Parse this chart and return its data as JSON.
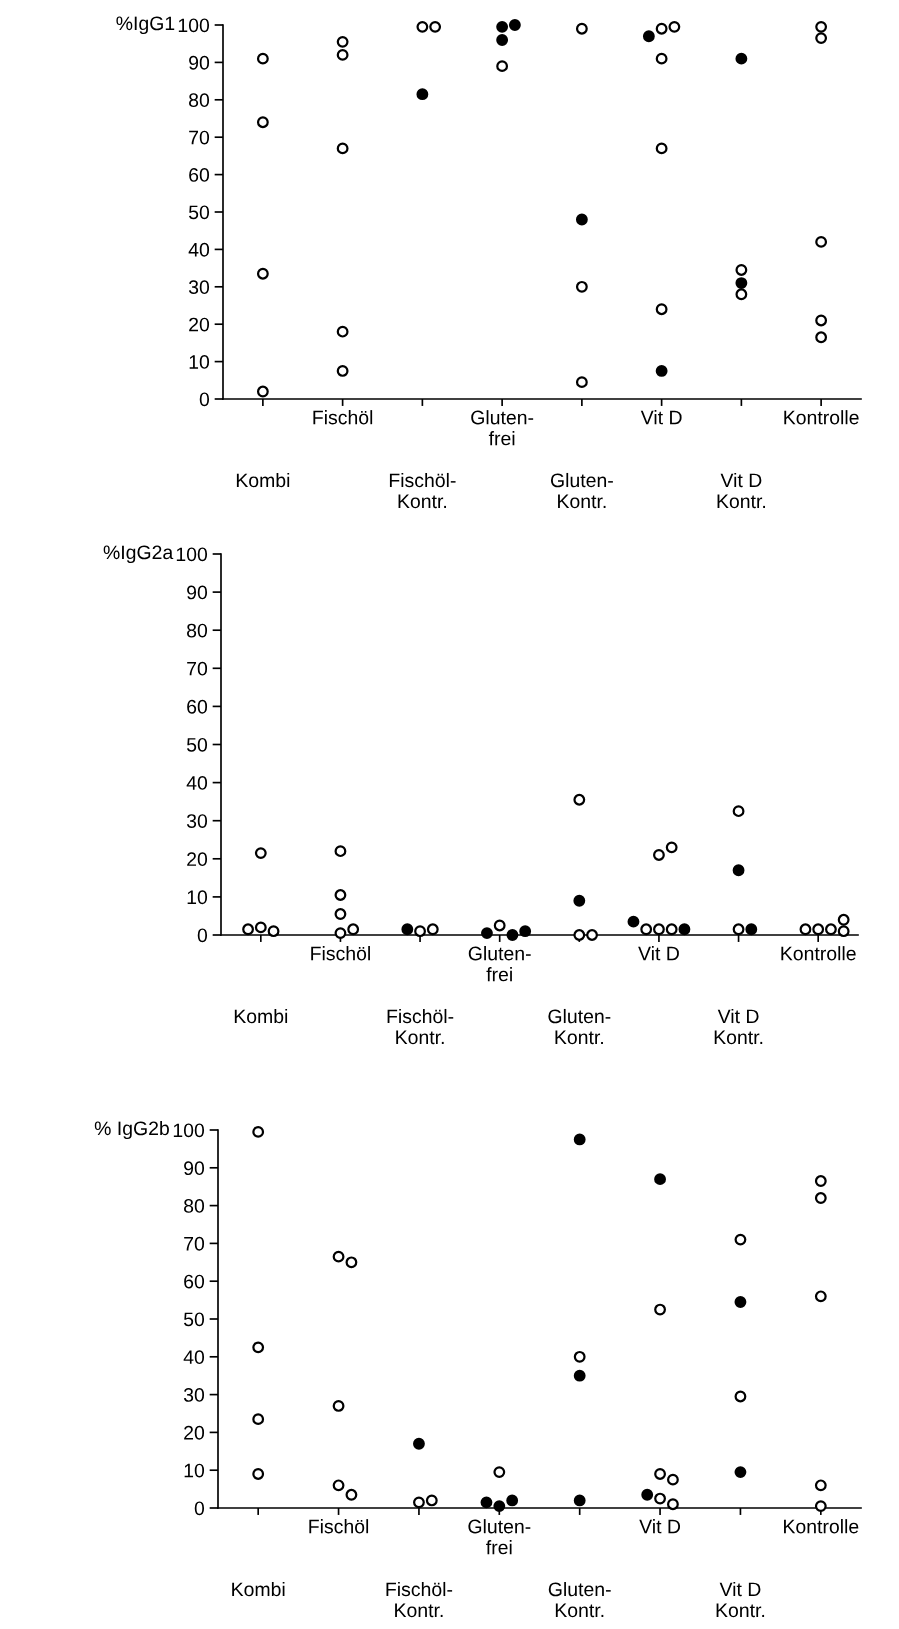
{
  "chart_data": [
    {
      "type": "scatter",
      "ylabel": "%IgG1",
      "ylim": [
        0,
        100
      ],
      "yticks": [
        0,
        10,
        20,
        30,
        40,
        50,
        60,
        70,
        80,
        90,
        100
      ],
      "categories": [
        "Kombi",
        "Fischöl",
        "Fischöl-\nKontr.",
        "Gluten-\nfrei",
        "Gluten-\nKontr.",
        "Vit D",
        "Vit D\nKontr.",
        "Kontrolle"
      ],
      "marker": "circle",
      "series": [
        {
          "color": "#ffffff",
          "x": [
            "Kombi",
            "Kombi",
            "Kombi",
            "Kombi",
            "Fischöl",
            "Fischöl",
            "Fischöl",
            "Fischöl",
            "Fischöl",
            "Fischöl-\nKontr.",
            "Fischöl-\nKontr.",
            "Gluten-\nfrei",
            "Gluten-\nKontr.",
            "Gluten-\nKontr.",
            "Gluten-\nKontr.",
            "Vit D",
            "Vit D",
            "Vit D",
            "Vit D",
            "Vit D",
            "Vit D\nKontr.",
            "Vit D\nKontr.",
            "Kontrolle",
            "Kontrolle",
            "Kontrolle",
            "Kontrolle",
            "Kontrolle"
          ],
          "values": [
            91,
            74,
            33.5,
            2,
            95.5,
            92,
            67,
            18,
            7.5,
            99.5,
            99.5,
            89,
            99,
            30,
            4.5,
            99,
            99.5,
            91,
            67,
            24,
            34.5,
            28,
            99.5,
            96.5,
            42,
            21,
            16.5
          ]
        },
        {
          "color": "#000000",
          "x": [
            "Fischöl-\nKontr.",
            "Gluten-\nfrei",
            "Gluten-\nfrei",
            "Gluten-\nfrei",
            "Gluten-\nKontr.",
            "Vit D",
            "Vit D",
            "Vit D\nKontr.",
            "Vit D\nKontr."
          ],
          "values": [
            81.5,
            99.5,
            100,
            96,
            48,
            97,
            7.5,
            91,
            31
          ]
        }
      ]
    },
    {
      "type": "scatter",
      "ylabel": "%IgG2a",
      "ylim": [
        0,
        100
      ],
      "yticks": [
        0,
        10,
        20,
        30,
        40,
        50,
        60,
        70,
        80,
        90,
        100
      ],
      "categories": [
        "Kombi",
        "Fischöl",
        "Fischöl-\nKontr.",
        "Gluten-\nfrei",
        "Gluten-\nKontr.",
        "Vit D",
        "Vit D\nKontr.",
        "Kontrolle"
      ],
      "marker": "circle",
      "series": [
        {
          "color": "#ffffff",
          "x": [
            "Kombi",
            "Kombi",
            "Kombi",
            "Kombi",
            "Fischöl",
            "Fischöl",
            "Fischöl",
            "Fischöl",
            "Fischöl",
            "Fischöl-\nKontr.",
            "Fischöl-\nKontr.",
            "Gluten-\nfrei",
            "Gluten-\nKontr.",
            "Gluten-\nKontr.",
            "Gluten-\nKontr.",
            "Vit D",
            "Vit D",
            "Vit D",
            "Vit D",
            "Vit D",
            "Vit D\nKontr.",
            "Vit D\nKontr.",
            "Kontrolle",
            "Kontrolle",
            "Kontrolle",
            "Kontrolle",
            "Kontrolle"
          ],
          "values": [
            2,
            1,
            1.5,
            21.5,
            0.5,
            1.5,
            5.5,
            10.5,
            22,
            1,
            1.5,
            2.5,
            35.5,
            0,
            0,
            1.5,
            1.5,
            1.5,
            21,
            23,
            1.5,
            32.5,
            1.5,
            1.5,
            1.5,
            4,
            1
          ]
        },
        {
          "color": "#000000",
          "x": [
            "Fischöl-\nKontr.",
            "Gluten-\nfrei",
            "Gluten-\nfrei",
            "Gluten-\nfrei",
            "Gluten-\nKontr.",
            "Vit D",
            "Vit D",
            "Vit D\nKontr.",
            "Vit D\nKontr."
          ],
          "values": [
            1.5,
            0,
            0.5,
            1,
            9,
            1.5,
            3.5,
            1.5,
            17
          ]
        }
      ]
    },
    {
      "type": "scatter",
      "ylabel": "% IgG2b",
      "ylim": [
        0,
        100
      ],
      "yticks": [
        0,
        10,
        20,
        30,
        40,
        50,
        60,
        70,
        80,
        90,
        100
      ],
      "categories": [
        "Kombi",
        "Fischöl",
        "Fischöl-\nKontr.",
        "Gluten-\nfrei",
        "Gluten-\nKontr.",
        "Vit D",
        "Vit D\nKontr.",
        "Kontrolle"
      ],
      "marker": "circle",
      "series": [
        {
          "color": "#ffffff",
          "x": [
            "Kombi",
            "Kombi",
            "Kombi",
            "Kombi",
            "Fischöl",
            "Fischöl",
            "Fischöl",
            "Fischöl",
            "Fischöl",
            "Fischöl-\nKontr.",
            "Fischöl-\nKontr.",
            "Gluten-\nfrei",
            "Gluten-\nKontr.",
            "Vit D",
            "Vit D",
            "Vit D",
            "Vit D",
            "Vit D",
            "Vit D\nKontr.",
            "Vit D\nKontr.",
            "Kontrolle",
            "Kontrolle",
            "Kontrolle",
            "Kontrolle",
            "Kontrolle"
          ],
          "values": [
            99.5,
            42.5,
            23.5,
            9,
            66.5,
            65,
            27,
            6,
            3.5,
            1.5,
            2,
            9.5,
            40,
            52.5,
            9,
            7.5,
            2.5,
            1,
            71,
            29.5,
            86.5,
            82,
            56,
            6,
            0.5
          ]
        },
        {
          "color": "#000000",
          "x": [
            "Fischöl-\nKontr.",
            "Gluten-\nfrei",
            "Gluten-\nfrei",
            "Gluten-\nfrei",
            "Gluten-\nKontr.",
            "Gluten-\nKontr.",
            "Gluten-\nKontr.",
            "Vit D",
            "Vit D",
            "Vit D\nKontr.",
            "Vit D\nKontr."
          ],
          "values": [
            17,
            0.5,
            2,
            1.5,
            97.5,
            35,
            2,
            87,
            3.5,
            54.5,
            9.5
          ]
        }
      ]
    }
  ]
}
